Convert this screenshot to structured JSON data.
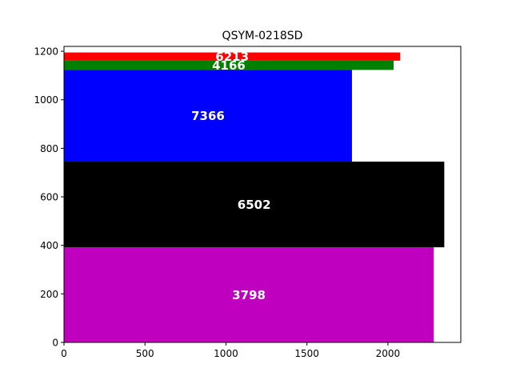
{
  "chart_data": {
    "type": "bar",
    "orientation": "horizontal",
    "title": "QSYM-0218SD",
    "xlabel": "",
    "ylabel": "",
    "xlim": [
      0,
      2450
    ],
    "ylim": [
      0,
      1220
    ],
    "x_ticks": [
      "0",
      "500",
      "1000",
      "1500",
      "2000"
    ],
    "y_ticks": [
      "0",
      "200",
      "400",
      "600",
      "800",
      "1000",
      "1200"
    ],
    "grid": false,
    "legend": "none",
    "bars": [
      {
        "label": "3798",
        "y0": 0,
        "y1": 392,
        "width": 2283,
        "color": "#bf00bf"
      },
      {
        "label": "6502",
        "y0": 392,
        "y1": 745,
        "width": 2348,
        "color": "#000000"
      },
      {
        "label": "7366",
        "y0": 745,
        "y1": 1123,
        "width": 1778,
        "color": "#0000ff"
      },
      {
        "label": "4166",
        "y0": 1123,
        "y1": 1161,
        "width": 2035,
        "color": "#008000"
      },
      {
        "label": "6213",
        "y0": 1161,
        "y1": 1195,
        "width": 2076,
        "color": "#ff0000"
      }
    ]
  }
}
